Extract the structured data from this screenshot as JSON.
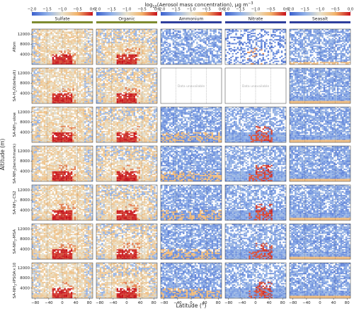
{
  "chart_data": {
    "type": "heatmap",
    "title": "log10(Aerosol mass concentration), µg m⁻³",
    "title_parts": {
      "main": "log",
      "sub": "10",
      "rest": "(Aerosol mass concentration), µg m",
      "sup": "−3"
    },
    "xlabel": "Latitude (°)",
    "ylabel": "Altitude (m)",
    "xticks": [
      "−80",
      "−40",
      "0",
      "40",
      "80"
    ],
    "xlim": [
      -90,
      90
    ],
    "yticks": [
      "4000",
      "8000",
      "12000"
    ],
    "ylim": [
      0,
      14000
    ],
    "colorbar_range": [
      -2.0,
      0.0
    ],
    "colorbar_ticks": [
      "−2.0",
      "−1.5",
      "−1.0",
      "−0.5",
      "0.0"
    ],
    "columns": [
      {
        "name": "Sulfate",
        "color": "#7e8b2f"
      },
      {
        "name": "Organic",
        "color": "#7e8b2f"
      },
      {
        "name": "Ammonium",
        "color": "#2e3e9c"
      },
      {
        "name": "Nitrate",
        "color": "#2e3e9c"
      },
      {
        "name": "Seasalt",
        "color": "#2e3e9c"
      }
    ],
    "rows": [
      {
        "label": "ATom",
        "parts": [
          {
            "t": "ATom"
          }
        ]
      },
      {
        "label": "SA-H2O(default)",
        "parts": [
          {
            "t": "SA-H"
          },
          {
            "t": "2",
            "sub": true
          },
          {
            "t": "O(default)"
          }
        ]
      },
      {
        "label": "SA-NH3-slow",
        "parts": [
          {
            "t": "SA-NH"
          },
          {
            "t": "3",
            "sub": true
          },
          {
            "t": "-slow"
          }
        ]
      },
      {
        "label": "SA-NH3(benchmark)",
        "parts": [
          {
            "t": "SA-NH"
          },
          {
            "t": "3",
            "sub": true
          },
          {
            "t": "(benchmark)"
          }
        ]
      },
      {
        "label": "SA-NH3-CS2",
        "parts": [
          {
            "t": "SA-NH"
          },
          {
            "t": "3",
            "sub": true
          },
          {
            "t": "-CS2"
          }
        ]
      },
      {
        "label": "SA-NH3-MSA",
        "parts": [
          {
            "t": "SA-NH"
          },
          {
            "t": "3",
            "sub": true
          },
          {
            "t": "-MSA"
          }
        ]
      },
      {
        "label": "SA-NH3-IPSOA×10",
        "parts": [
          {
            "t": "SA-NH"
          },
          {
            "t": "3",
            "sub": true
          },
          {
            "t": "-IPSOA×10"
          }
        ]
      }
    ],
    "unavailable_text": "Data unavailable",
    "unavailable_cells": [
      [
        1,
        2
      ],
      [
        1,
        3
      ]
    ]
  }
}
